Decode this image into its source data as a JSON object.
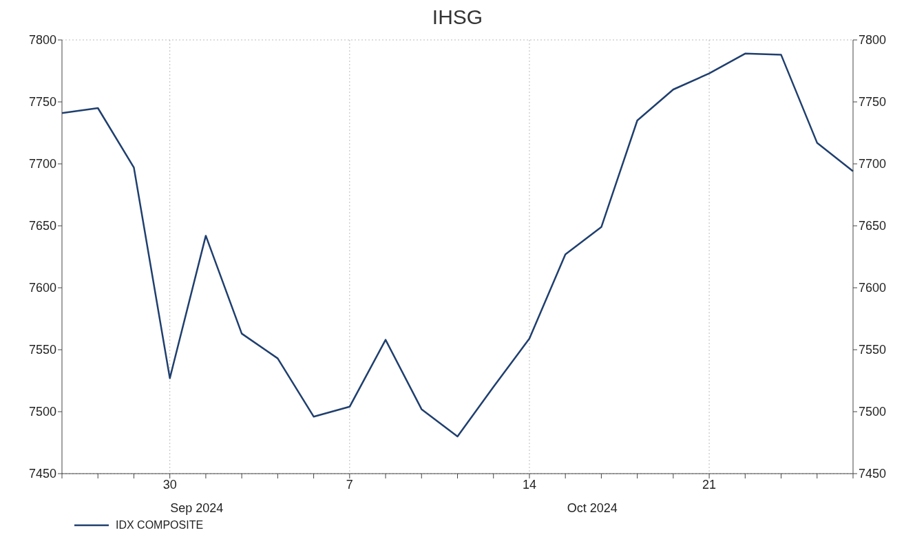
{
  "chart_data": {
    "type": "line",
    "title": "IHSG",
    "categories": [
      null,
      null,
      null,
      "30",
      null,
      null,
      null,
      null,
      "7",
      null,
      null,
      null,
      null,
      "14",
      null,
      null,
      null,
      null,
      "21",
      null,
      null,
      null,
      null
    ],
    "series": [
      {
        "name": "IDX COMPOSITE",
        "color": "#1f3f6e",
        "values": [
          7741,
          7745,
          7697,
          7527,
          7642,
          7563,
          7543,
          7496,
          7504,
          7558,
          7502,
          7480,
          7520,
          7559,
          7627,
          7649,
          7735,
          7760,
          7773,
          7789,
          7788,
          7717,
          7694
        ]
      }
    ],
    "ylim": [
      7450,
      7800
    ],
    "yticks": [
      7450,
      7500,
      7550,
      7600,
      7650,
      7700,
      7750,
      7800
    ],
    "y2lim": [
      7450,
      7800
    ],
    "y2ticks": [
      7450,
      7500,
      7550,
      7600,
      7650,
      7700,
      7750,
      7800
    ],
    "annotations": [
      "Sep 2024",
      "Oct 2024"
    ],
    "grid": true,
    "legend": "bottom left",
    "marker": "none",
    "line_style": "solid"
  }
}
